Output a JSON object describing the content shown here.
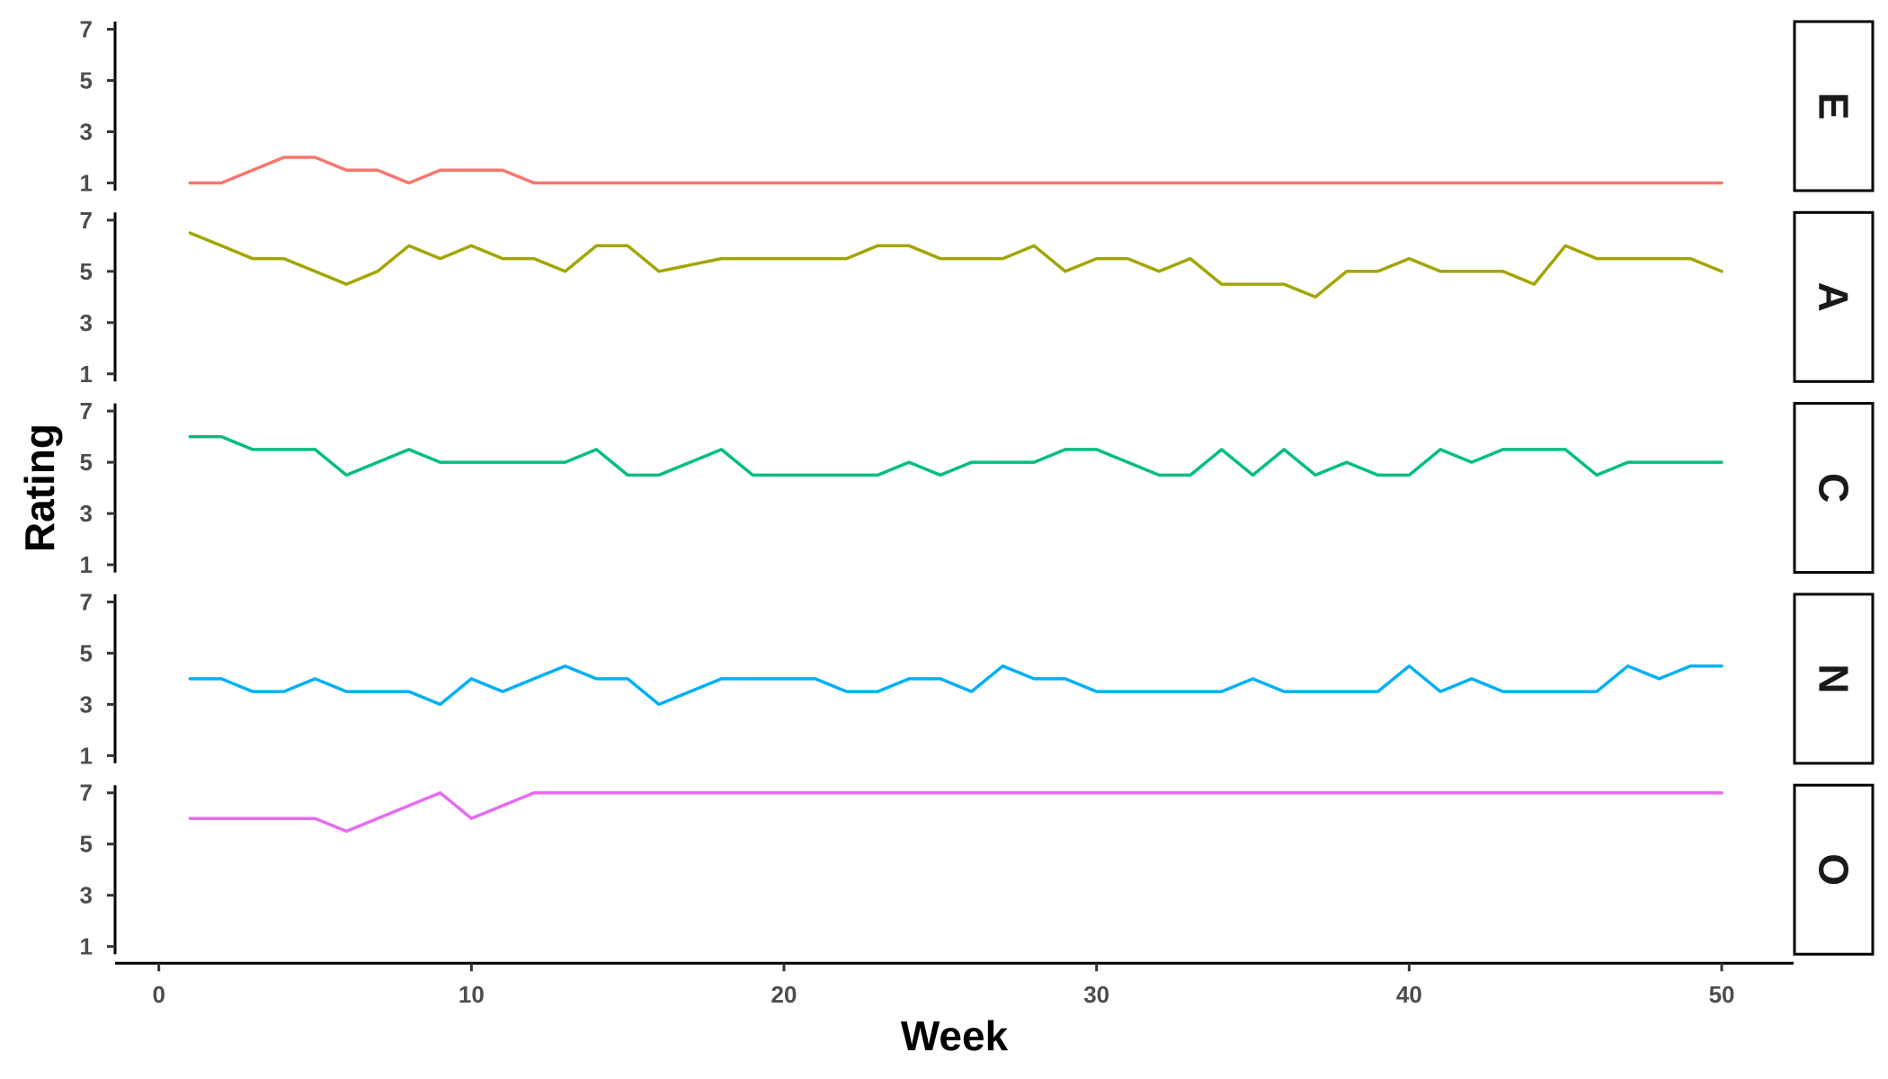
{
  "chart_data": {
    "type": "line",
    "xlabel": "Week",
    "ylabel": "Rating",
    "xlim": [
      -1.4,
      52.3
    ],
    "ylim": [
      0.7,
      7.3
    ],
    "x_ticks": [
      0,
      10,
      20,
      30,
      40,
      50
    ],
    "y_ticks": [
      1,
      3,
      5,
      7
    ],
    "x": [
      1,
      2,
      3,
      4,
      5,
      6,
      7,
      8,
      9,
      10,
      11,
      12,
      13,
      14,
      15,
      16,
      17,
      18,
      19,
      20,
      21,
      22,
      23,
      24,
      25,
      26,
      27,
      28,
      29,
      30,
      31,
      32,
      33,
      34,
      35,
      36,
      37,
      38,
      39,
      40,
      41,
      42,
      43,
      44,
      45,
      46,
      47,
      48,
      49,
      50
    ],
    "series": [
      {
        "name": "E",
        "color": "#F8766D",
        "values": [
          1,
          1,
          1.5,
          2,
          2,
          1.5,
          1.5,
          1,
          1.5,
          1.5,
          1.5,
          1,
          1,
          1,
          1,
          1,
          1,
          1,
          1,
          1,
          1,
          1,
          1,
          1,
          1,
          1,
          1,
          1,
          1,
          1,
          1,
          1,
          1,
          1,
          1,
          1,
          1,
          1,
          1,
          1,
          1,
          1,
          1,
          1,
          1,
          1,
          1,
          1,
          1,
          1
        ]
      },
      {
        "name": "A",
        "color": "#A3A500",
        "values": [
          6.5,
          6,
          5.5,
          5.5,
          5,
          4.5,
          5,
          6,
          5.5,
          6,
          5.5,
          5.5,
          5,
          6,
          6,
          5,
          5.25,
          5.5,
          5.5,
          5.5,
          5.5,
          5.5,
          6,
          6,
          5.5,
          5.5,
          5.5,
          6,
          5,
          5.5,
          5.5,
          5,
          5.5,
          4.5,
          4.5,
          4.5,
          4,
          5,
          5,
          5.5,
          5,
          5,
          5,
          4.5,
          6,
          5.5,
          5.5,
          5.5,
          5.5,
          5
        ]
      },
      {
        "name": "C",
        "color": "#00BF7D",
        "values": [
          6,
          6,
          5.5,
          5.5,
          5.5,
          4.5,
          5,
          5.5,
          5,
          5,
          5,
          5,
          5,
          5.5,
          4.5,
          4.5,
          5,
          5.5,
          4.5,
          4.5,
          4.5,
          4.5,
          4.5,
          5,
          4.5,
          5,
          5,
          5,
          5.5,
          5.5,
          5,
          4.5,
          4.5,
          5.5,
          4.5,
          5.5,
          4.5,
          5,
          4.5,
          4.5,
          5.5,
          5,
          5.5,
          5.5,
          5.5,
          4.5,
          5,
          5,
          5,
          5
        ]
      },
      {
        "name": "N",
        "color": "#00B0F6",
        "values": [
          4,
          4,
          3.5,
          3.5,
          4,
          3.5,
          3.5,
          3.5,
          3,
          4,
          3.5,
          4,
          4.5,
          4,
          4,
          3,
          3.5,
          4,
          4,
          4,
          4,
          3.5,
          3.5,
          4,
          4,
          3.5,
          4.5,
          4,
          4,
          3.5,
          3.5,
          3.5,
          3.5,
          3.5,
          4,
          3.5,
          3.5,
          3.5,
          3.5,
          4.5,
          3.5,
          4,
          3.5,
          3.5,
          3.5,
          3.5,
          4.5,
          4,
          4.5,
          4.5
        ]
      },
      {
        "name": "O",
        "color": "#E76BF3",
        "values": [
          6,
          6,
          6,
          6,
          6,
          5.5,
          6,
          6.5,
          7,
          6,
          6.5,
          7,
          7,
          7,
          7,
          7,
          7,
          7,
          7,
          7,
          7,
          7,
          7,
          7,
          7,
          7,
          7,
          7,
          7,
          7,
          7,
          7,
          7,
          7,
          7,
          7,
          7,
          7,
          7,
          7,
          7,
          7,
          7,
          7,
          7,
          7,
          7,
          7,
          7,
          7
        ]
      }
    ],
    "grid": false,
    "legend": "facet strips on right"
  }
}
